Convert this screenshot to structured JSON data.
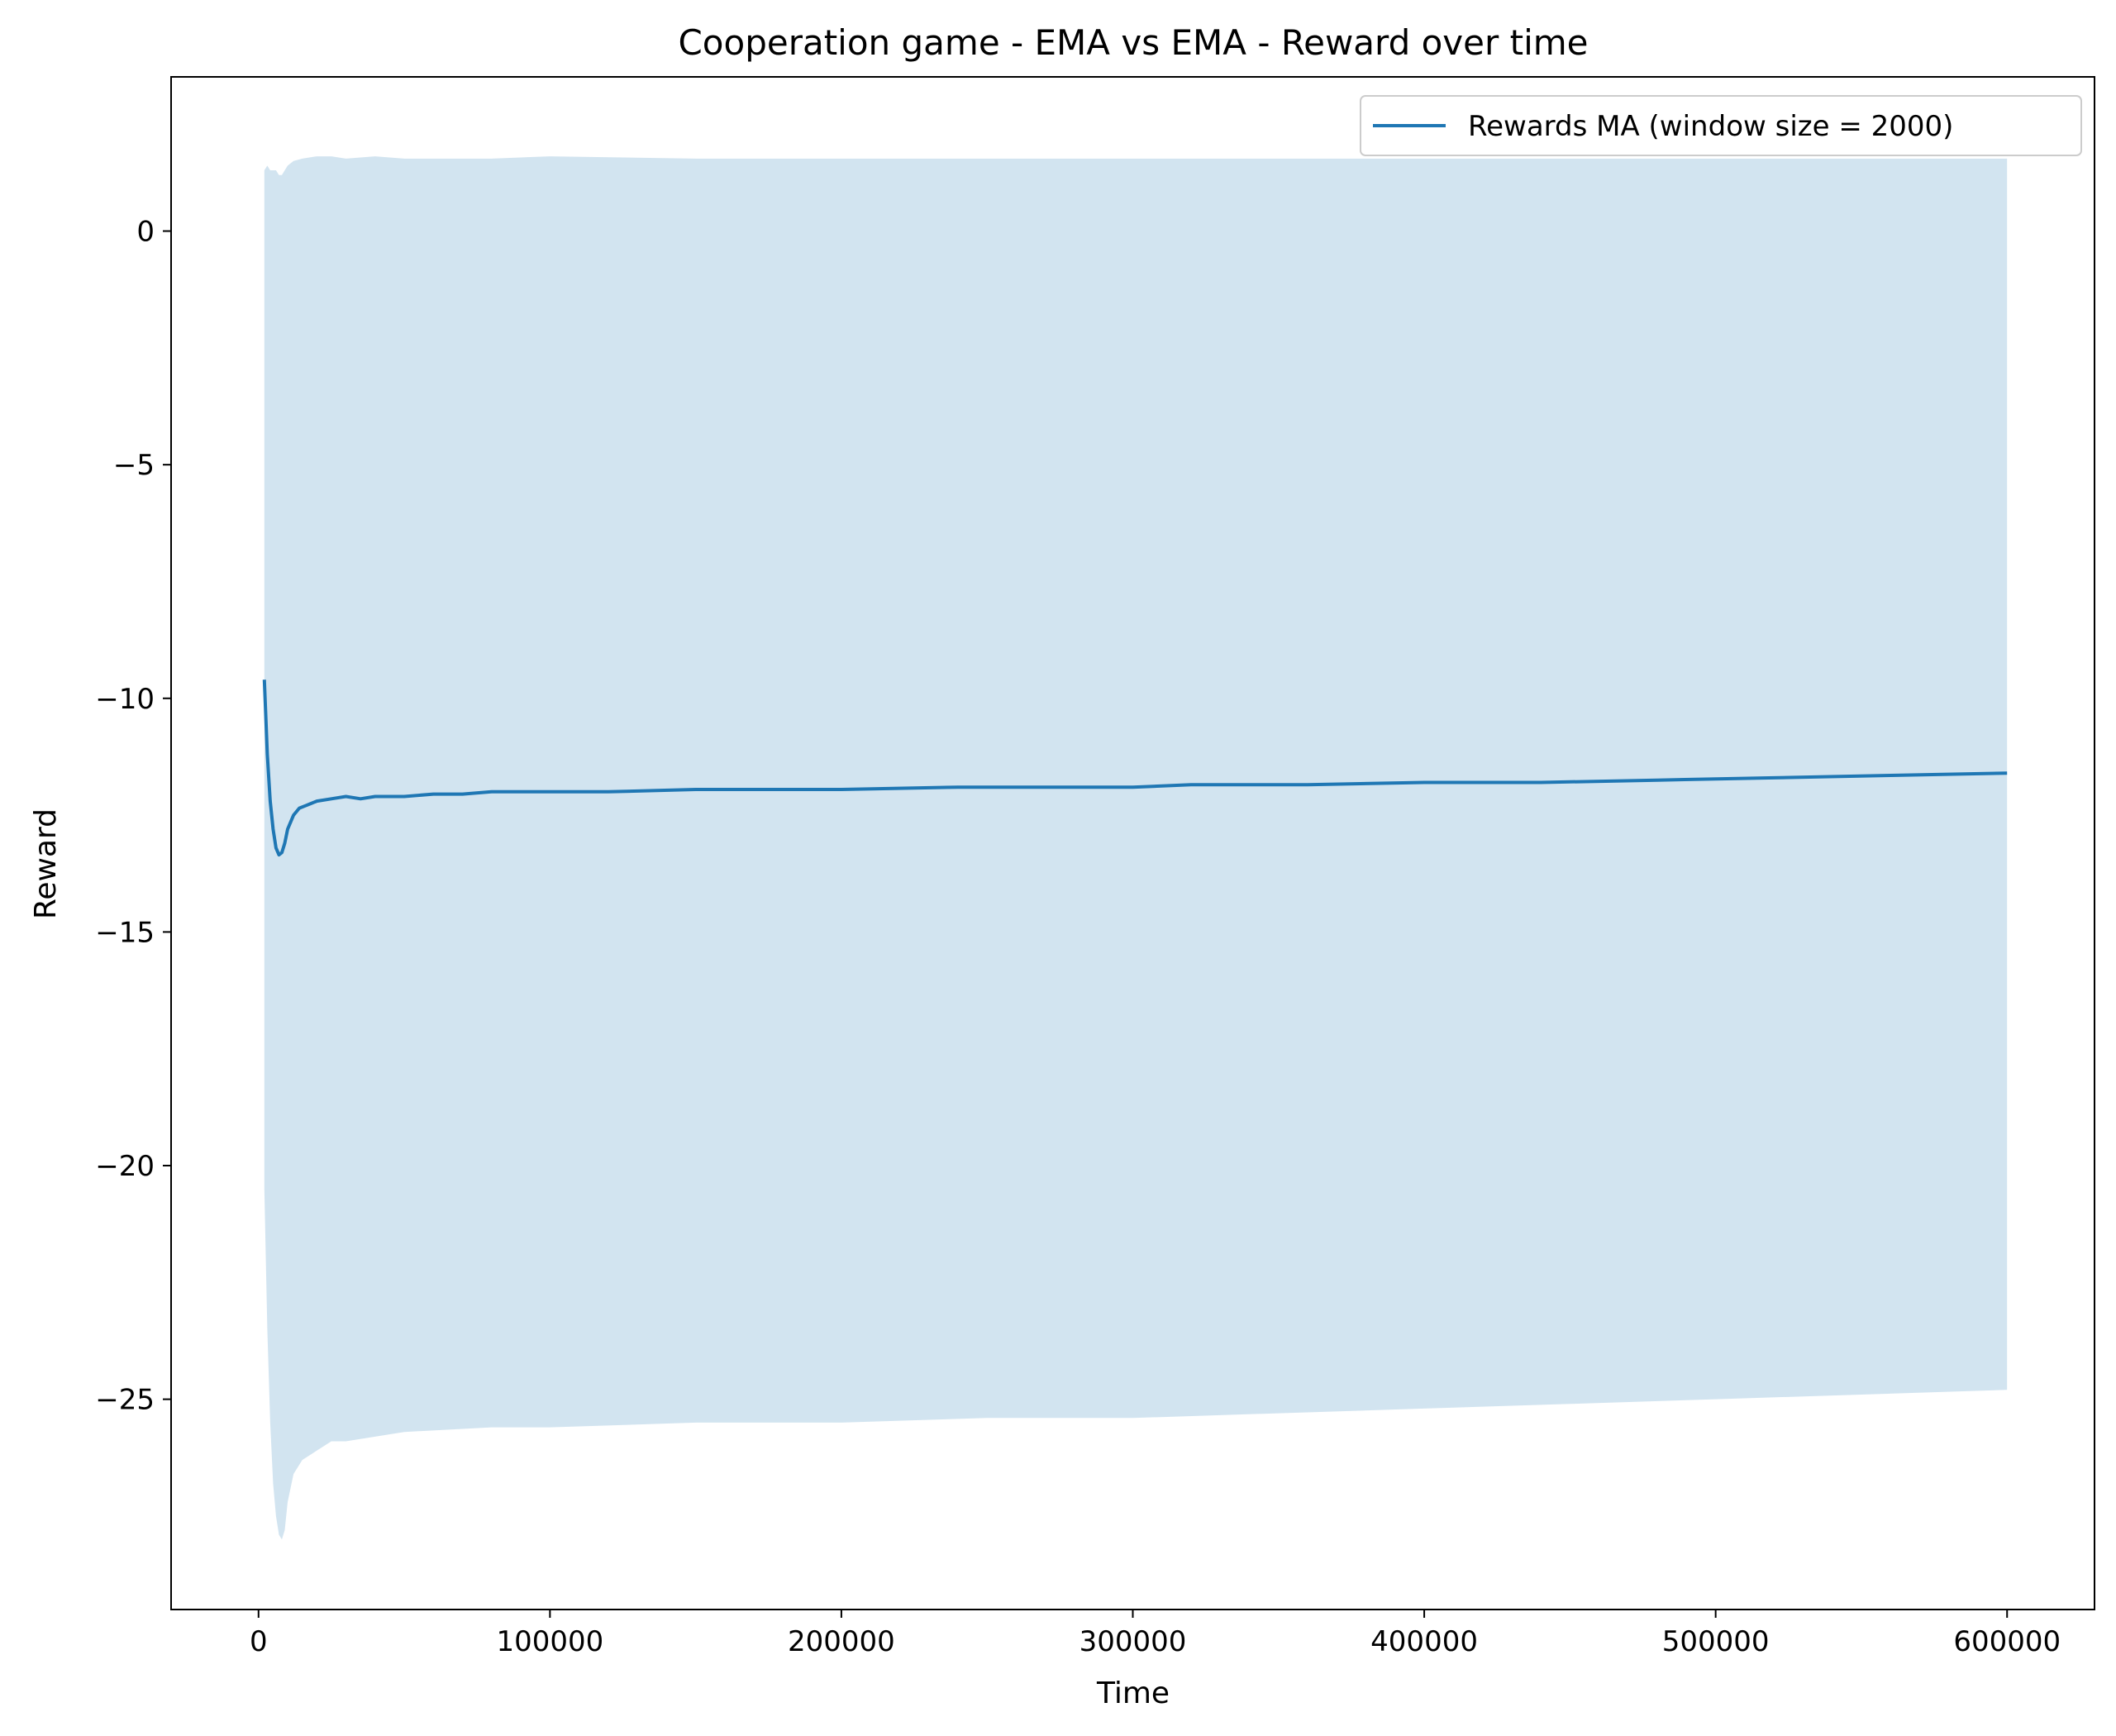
{
  "chart_data": {
    "type": "line",
    "title": "Cooperation game - EMA vs EMA - Reward over time",
    "xlabel": "Time",
    "ylabel": "Reward",
    "xlim": [
      -30000,
      630000
    ],
    "ylim": [
      -29.5,
      3.3
    ],
    "x_ticks": [
      0,
      100000,
      200000,
      300000,
      400000,
      500000,
      600000
    ],
    "x_tick_labels": [
      "0",
      "100000",
      "200000",
      "300000",
      "400000",
      "500000",
      "600000"
    ],
    "y_ticks": [
      0,
      -5,
      -10,
      -15,
      -20,
      -25
    ],
    "y_tick_labels": [
      "0",
      "−5",
      "−10",
      "−15",
      "−20",
      "−25"
    ],
    "grid": false,
    "legend": {
      "placement": "top-right",
      "entries": [
        "Rewards MA (window size = 2000)"
      ]
    },
    "colors": {
      "line": "#1f77b4",
      "band": "#1f77b4",
      "band_opacity": 0.2
    },
    "series": [
      {
        "name": "Rewards MA (window size = 2000)",
        "x": [
          2000,
          3000,
          4000,
          5000,
          6000,
          7000,
          8000,
          9000,
          10000,
          12000,
          14000,
          16000,
          18000,
          20000,
          25000,
          30000,
          35000,
          40000,
          50000,
          60000,
          70000,
          80000,
          100000,
          120000,
          150000,
          180000,
          200000,
          240000,
          280000,
          300000,
          320000,
          340000,
          360000,
          400000,
          440000,
          480000,
          520000,
          560000,
          600000
        ],
        "y": [
          -9.6,
          -11.2,
          -12.2,
          -12.8,
          -13.2,
          -13.35,
          -13.3,
          -13.1,
          -12.8,
          -12.5,
          -12.35,
          -12.3,
          -12.25,
          -12.2,
          -12.15,
          -12.1,
          -12.15,
          -12.1,
          -12.1,
          -12.05,
          -12.05,
          -12.0,
          -12.0,
          -12.0,
          -11.95,
          -11.95,
          -11.95,
          -11.9,
          -11.9,
          -11.9,
          -11.85,
          -11.85,
          -11.85,
          -11.8,
          -11.8,
          -11.75,
          -11.7,
          -11.65,
          -11.6
        ]
      }
    ],
    "band": {
      "x": [
        2000,
        3000,
        4000,
        5000,
        6000,
        7000,
        8000,
        9000,
        10000,
        12000,
        15000,
        20000,
        25000,
        30000,
        40000,
        50000,
        80000,
        100000,
        150000,
        200000,
        250000,
        300000,
        350000,
        400000,
        450000,
        500000,
        550000,
        600000
      ],
      "upper": [
        1.3,
        1.4,
        1.3,
        1.3,
        1.3,
        1.2,
        1.2,
        1.3,
        1.4,
        1.5,
        1.55,
        1.6,
        1.6,
        1.55,
        1.6,
        1.55,
        1.55,
        1.6,
        1.55,
        1.55,
        1.55,
        1.55,
        1.55,
        1.55,
        1.55,
        1.55,
        1.55,
        1.55
      ],
      "lower": [
        -20.5,
        -23.5,
        -25.5,
        -26.8,
        -27.5,
        -27.9,
        -28.0,
        -27.8,
        -27.2,
        -26.6,
        -26.3,
        -26.1,
        -25.9,
        -25.9,
        -25.8,
        -25.7,
        -25.6,
        -25.6,
        -25.5,
        -25.5,
        -25.4,
        -25.4,
        -25.3,
        -25.2,
        -25.1,
        -25.0,
        -24.9,
        -24.8
      ]
    }
  }
}
